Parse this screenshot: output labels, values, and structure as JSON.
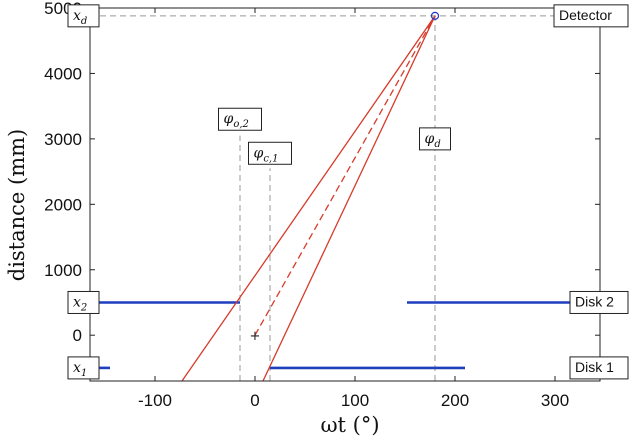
{
  "chart_data": {
    "type": "line",
    "xlabel": "ωt (°)",
    "ylabel": "distance (mm)",
    "xlim": [
      -165,
      345
    ],
    "ylim": [
      -700,
      5000
    ],
    "xticks": [
      "-100",
      "0",
      "100",
      "200",
      "300"
    ],
    "yticks": [
      "0",
      "1000",
      "2000",
      "3000",
      "4000",
      "5000"
    ],
    "grid": false,
    "detector_point": {
      "x": 180,
      "y": 4880
    },
    "origin_marker": {
      "x": 0,
      "y": 0,
      "symbol": "+"
    },
    "series": [
      {
        "id": "disk-2-left",
        "color": "#1f3fbf",
        "style": "solid",
        "x": [
          -165,
          -15
        ],
        "y": [
          500,
          500
        ]
      },
      {
        "id": "disk-2-right",
        "color": "#1f3fbf",
        "style": "solid",
        "x": [
          152,
          345
        ],
        "y": [
          500,
          500
        ]
      },
      {
        "id": "disk-1-left",
        "color": "#1f3fbf",
        "style": "solid",
        "x": [
          -157,
          -145
        ],
        "y": [
          -500,
          -500
        ]
      },
      {
        "id": "disk-1-right",
        "color": "#1f3fbf",
        "style": "solid",
        "x": [
          15,
          210
        ],
        "y": [
          -500,
          -500
        ]
      },
      {
        "id": "ray-left",
        "color": "#d73a2a",
        "style": "solid",
        "x": [
          -73,
          180
        ],
        "y": [
          -700,
          4880
        ]
      },
      {
        "id": "ray-right",
        "color": "#d73a2a",
        "style": "solid",
        "x": [
          8,
          180
        ],
        "y": [
          -700,
          4880
        ]
      },
      {
        "id": "ray-center",
        "color": "#d73a2a",
        "style": "dashed",
        "x": [
          0,
          180
        ],
        "y": [
          0,
          4880
        ]
      },
      {
        "id": "guide-x-d",
        "color": "#999999",
        "style": "dashed",
        "x": [
          -165,
          345
        ],
        "y": [
          4880,
          4880
        ]
      },
      {
        "id": "guide-phi-o2",
        "color": "#999999",
        "style": "dashed",
        "x": [
          -15,
          -15
        ],
        "y": [
          -700,
          3050
        ]
      },
      {
        "id": "guide-phi-c1",
        "color": "#999999",
        "style": "dashed",
        "x": [
          15,
          15
        ],
        "y": [
          -700,
          2550
        ]
      },
      {
        "id": "guide-phi-d",
        "color": "#999999",
        "style": "dashed",
        "x": [
          180,
          180
        ],
        "y": [
          -700,
          4880
        ]
      }
    ],
    "annotations": [
      {
        "id": "x-d",
        "text": "x_d",
        "kind": "math",
        "at": {
          "x": -165,
          "y": 4880
        },
        "anchor": "left"
      },
      {
        "id": "x-2",
        "text": "x_2",
        "kind": "math",
        "at": {
          "x": -165,
          "y": 500
        },
        "anchor": "left"
      },
      {
        "id": "x-1",
        "text": "x_1",
        "kind": "math",
        "at": {
          "x": -165,
          "y": -500
        },
        "anchor": "left"
      },
      {
        "id": "phi-o2",
        "text": "φ_o,2",
        "kind": "math",
        "at": {
          "x": -15,
          "y": 3300
        },
        "anchor": "center"
      },
      {
        "id": "phi-c1",
        "text": "φ_c,1",
        "kind": "math",
        "at": {
          "x": 15,
          "y": 2780
        },
        "anchor": "center"
      },
      {
        "id": "phi-d",
        "text": "φ_d",
        "kind": "math",
        "at": {
          "x": 180,
          "y": 3000
        },
        "anchor": "center"
      },
      {
        "id": "detector",
        "text": "Detector",
        "kind": "text",
        "at": {
          "x": 345,
          "y": 4880
        },
        "anchor": "right"
      },
      {
        "id": "disk-2",
        "text": "Disk 2",
        "kind": "text",
        "at": {
          "x": 345,
          "y": 500
        },
        "anchor": "right"
      },
      {
        "id": "disk-1",
        "text": "Disk 1",
        "kind": "text",
        "at": {
          "x": 345,
          "y": -500
        },
        "anchor": "right"
      }
    ]
  }
}
